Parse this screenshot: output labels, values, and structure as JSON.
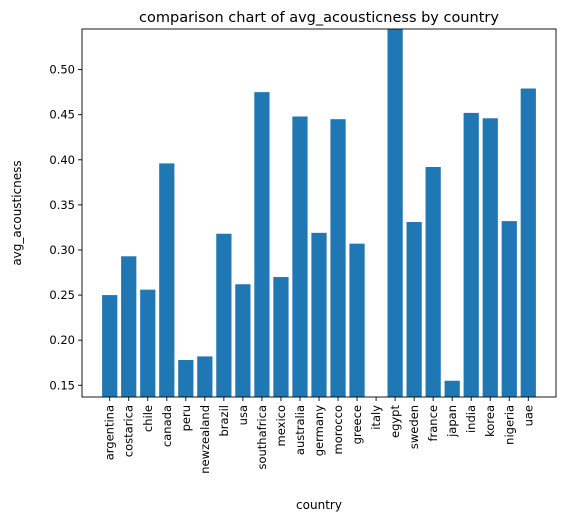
{
  "chart_data": {
    "type": "bar",
    "title": "comparison chart of avg_acousticness by country",
    "xlabel": "country",
    "ylabel": "avg_acousticness",
    "categories": [
      "argentina",
      "costarica",
      "chile",
      "canada",
      "peru",
      "newzealand",
      "brazil",
      "usa",
      "southafrica",
      "mexico",
      "australia",
      "germany",
      "morocco",
      "greece",
      "italy",
      "egypt",
      "sweden",
      "france",
      "japan",
      "india",
      "korea",
      "nigeria",
      "uae"
    ],
    "values": [
      0.25,
      0.293,
      0.256,
      0.396,
      0.178,
      0.182,
      0.318,
      0.262,
      0.475,
      0.27,
      0.448,
      0.319,
      0.445,
      0.307,
      0.135,
      0.545,
      0.331,
      0.392,
      0.155,
      0.452,
      0.446,
      0.332,
      0.479
    ],
    "ylim": [
      0.137,
      0.545
    ],
    "yticks": [
      0.15,
      0.2,
      0.25,
      0.3,
      0.35,
      0.4,
      0.45,
      0.5
    ],
    "ytick_labels": [
      "0.15",
      "0.20",
      "0.25",
      "0.30",
      "0.35",
      "0.40",
      "0.45",
      "0.50"
    ],
    "bar_color": "#1f77b4",
    "grid": false,
    "legend": "none"
  }
}
